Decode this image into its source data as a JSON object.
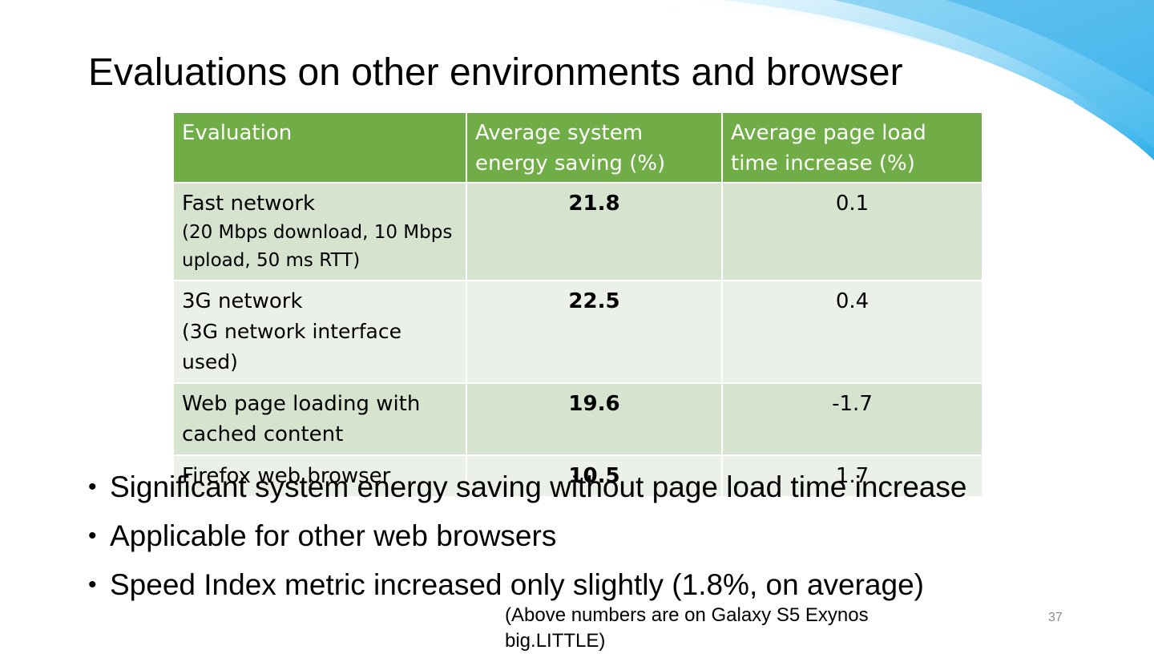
{
  "slide": {
    "title": "Evaluations on other environments and browser",
    "page_number": "37",
    "footnote": "(Above numbers are on Galaxy S5 Exynos big.LITTLE)"
  },
  "table": {
    "headers": [
      "Evaluation",
      "Average system energy saving (%)",
      "Average page load time increase (%)"
    ],
    "rows": [
      {
        "label": "Fast network",
        "detail": "(20 Mbps download, 10 Mbps upload, 50 ms RTT)",
        "energy_saving": "21.8",
        "load_time_increase": "0.1"
      },
      {
        "label": "3G network",
        "detail": "(3G network interface used)",
        "energy_saving": "22.5",
        "load_time_increase": "0.4"
      },
      {
        "label": "Web page loading with cached content",
        "detail": "",
        "energy_saving": "19.6",
        "load_time_increase": "-1.7"
      },
      {
        "label": "Firefox web browser",
        "detail": "",
        "energy_saving": "10.5",
        "load_time_increase": "1.7"
      }
    ]
  },
  "bullets": [
    "Significant system energy saving without page load time increase",
    "Applicable for other web browsers",
    "Speed Index metric increased only slightly (1.8%, on average)"
  ],
  "colors": {
    "header_green": "#70ad47",
    "row_dark": "#d5e3cf",
    "row_light": "#ebf0e8",
    "swoosh_blue": "#5fc3f0"
  }
}
